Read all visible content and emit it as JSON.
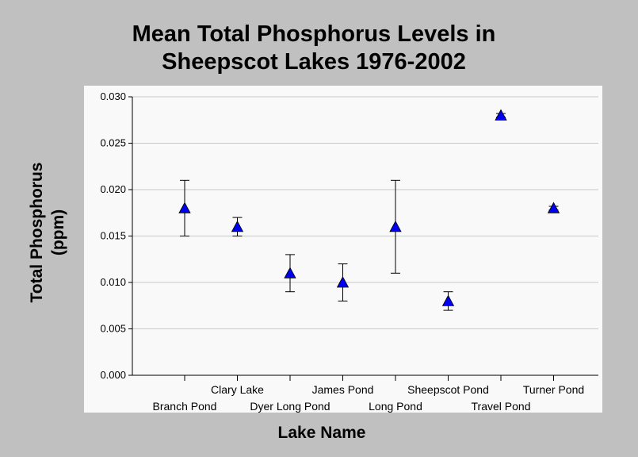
{
  "chart_data": {
    "type": "scatter",
    "title_lines": [
      "Mean Total Phosphorus Levels in",
      "Sheepscot Lakes 1976-2002"
    ],
    "xlabel": "Lake Name",
    "ylabel_lines": [
      "Total Phosphorus",
      "(ppm)"
    ],
    "ylim": [
      0,
      0.03
    ],
    "yticks": [
      "0.000",
      "0.005",
      "0.010",
      "0.015",
      "0.020",
      "0.025",
      "0.030"
    ],
    "grid": "horizontal",
    "marker_color": "#0000ee",
    "points": [
      {
        "category": "Branch Pond",
        "mean": 0.018,
        "low": 0.015,
        "high": 0.021
      },
      {
        "category": "Clary Lake",
        "mean": 0.016,
        "low": 0.015,
        "high": 0.017
      },
      {
        "category": "Dyer Long Pond",
        "mean": 0.011,
        "low": 0.009,
        "high": 0.013
      },
      {
        "category": "James Pond",
        "mean": 0.01,
        "low": 0.008,
        "high": 0.012
      },
      {
        "category": "Long Pond",
        "mean": 0.016,
        "low": 0.011,
        "high": 0.021
      },
      {
        "category": "Sheepscot Pond",
        "mean": 0.008,
        "low": 0.007,
        "high": 0.009
      },
      {
        "category": "Travel Pond",
        "mean": 0.028,
        "low": 0.0278,
        "high": 0.0282
      },
      {
        "category": "Turner Pond",
        "mean": 0.018,
        "low": 0.0178,
        "high": 0.0182
      }
    ]
  }
}
